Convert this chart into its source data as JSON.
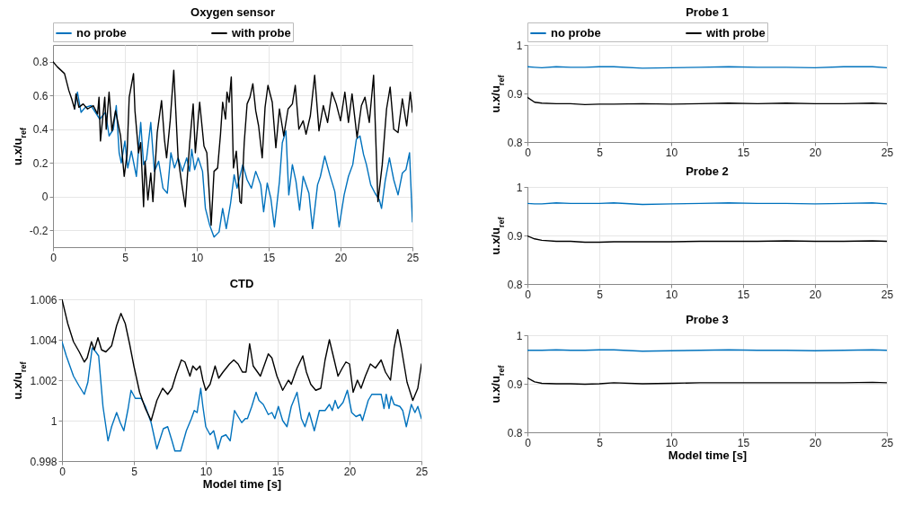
{
  "chart_data": [
    {
      "type": "line",
      "title": "Oxygen sensor",
      "ylabel": "u.x/u$_{ref}$",
      "xlim": [
        0,
        25
      ],
      "xticks": [
        0,
        5,
        10,
        15,
        20,
        25
      ],
      "ylim": [
        -0.3,
        0.9
      ],
      "yticks": [
        -0.2,
        0,
        0.2,
        0.4,
        0.6,
        0.8
      ],
      "grid": true,
      "legend": "top",
      "series": [
        {
          "name": "no probe",
          "color": "#0072bd",
          "x": [
            1.5,
            1.7,
            1.95,
            2.25,
            2.65,
            2.95,
            3.25,
            3.65,
            3.9,
            4.2,
            4.4,
            4.6,
            4.75,
            5,
            5.2,
            5.45,
            5.8,
            6.1,
            6.3,
            6.5,
            6.8,
            7.05,
            7.35,
            7.65,
            7.95,
            8.2,
            8.45,
            8.7,
            9,
            9.3,
            9.5,
            9.65,
            9.85,
            10.1,
            10.4,
            10.6,
            10.9,
            11.2,
            11.55,
            11.8,
            12.05,
            12.35,
            12.6,
            12.8,
            13.2,
            13.5,
            13.8,
            14.1,
            14.45,
            14.65,
            14.9,
            15.15,
            15.4,
            15.75,
            15.95,
            16.2,
            16.4,
            16.65,
            16.9,
            17.15,
            17.4,
            17.8,
            18.05,
            18.4,
            18.6,
            18.9,
            19.25,
            19.6,
            19.9,
            20.25,
            20.55,
            20.85,
            21.1,
            21.35,
            21.6,
            21.8,
            22.1,
            22.4,
            22.7,
            22.85,
            23.1,
            23.4,
            23.7,
            24,
            24.3,
            24.55,
            24.8,
            25
          ],
          "values": [
            0.52,
            0.62,
            0.5,
            0.53,
            0.54,
            0.5,
            0.46,
            0.5,
            0.36,
            0.4,
            0.54,
            0.26,
            0.2,
            0.33,
            0.17,
            0.27,
            0.12,
            0.44,
            0.19,
            0.22,
            0.44,
            0.15,
            0.21,
            0.05,
            0.02,
            0.26,
            0.17,
            0.23,
            0.15,
            0.23,
            0.15,
            0.28,
            0.16,
            0.23,
            0.15,
            -0.07,
            -0.17,
            -0.24,
            -0.21,
            -0.07,
            -0.19,
            -0.04,
            0.13,
            0.05,
            0.19,
            0.1,
            0.05,
            0.15,
            0.07,
            -0.09,
            0.08,
            -0.01,
            -0.18,
            0.09,
            0.32,
            0.39,
            0.01,
            0.19,
            0.09,
            -0.08,
            0.12,
            0.02,
            -0.19,
            0.07,
            0.12,
            0.24,
            0.13,
            0.03,
            -0.18,
            0.01,
            0.12,
            0.19,
            0.34,
            0.36,
            0.25,
            0.19,
            0.07,
            0.02,
            -0.02,
            -0.07,
            0.09,
            0.23,
            0.1,
            0.01,
            0.14,
            0.16,
            0.26,
            -0.15
          ]
        },
        {
          "name": "with probe",
          "color": "#000000",
          "x": [
            0,
            0.3,
            0.8,
            1.1,
            1.3,
            1.5,
            1.6,
            1.8,
            2.1,
            2.4,
            2.8,
            3.1,
            3.2,
            3.3,
            3.6,
            3.7,
            3.9,
            4.1,
            4.35,
            4.7,
            4.95,
            5.15,
            5.3,
            5.6,
            5.7,
            5.95,
            6.1,
            6.3,
            6.4,
            6.6,
            6.8,
            6.95,
            7.25,
            7.55,
            7.75,
            7.9,
            8.15,
            8.4,
            8.7,
            9,
            9.2,
            9.5,
            9.75,
            9.9,
            10.2,
            10.5,
            10.7,
            11,
            11.2,
            11.45,
            11.65,
            11.8,
            12,
            12.1,
            12.25,
            12.4,
            12.55,
            12.75,
            13,
            13.1,
            13.3,
            13.5,
            13.7,
            13.9,
            14.1,
            14.3,
            14.55,
            14.75,
            14.95,
            15.25,
            15.5,
            15.75,
            16.05,
            16.35,
            16.65,
            16.85,
            17.1,
            17.4,
            17.6,
            17.9,
            18.2,
            18.5,
            18.8,
            19.1,
            19.4,
            19.7,
            20,
            20.3,
            20.55,
            20.8,
            21.15,
            21.45,
            21.7,
            22,
            22.3,
            22.6,
            22.9,
            23.2,
            23.45,
            23.7,
            24,
            24.3,
            24.6,
            24.85,
            25
          ],
          "values": [
            0.8,
            0.77,
            0.73,
            0.63,
            0.58,
            0.52,
            0.61,
            0.53,
            0.55,
            0.52,
            0.54,
            0.49,
            0.59,
            0.33,
            0.59,
            0.4,
            0.62,
            0.39,
            0.51,
            0.36,
            0.12,
            0.25,
            0.59,
            0.73,
            0.51,
            0.26,
            0.32,
            -0.06,
            0.21,
            -0.02,
            0.14,
            -0.03,
            0.38,
            0.57,
            0.34,
            0.23,
            0.45,
            0.75,
            0.23,
            0.05,
            -0.06,
            0.31,
            0.55,
            0.26,
            0.56,
            0.3,
            0.26,
            -0.17,
            0.15,
            0.17,
            0.37,
            0.56,
            0.46,
            0.62,
            0.56,
            0.71,
            0.17,
            0.27,
            -0.03,
            -0.04,
            0.32,
            0.55,
            0.59,
            0.67,
            0.51,
            0.42,
            0.23,
            0.53,
            0.66,
            0.56,
            0.29,
            0.52,
            0.36,
            0.52,
            0.55,
            0.66,
            0.4,
            0.45,
            0.37,
            0.48,
            0.72,
            0.39,
            0.54,
            0.44,
            0.62,
            0.55,
            0.45,
            0.62,
            0.44,
            0.61,
            0.35,
            0.54,
            0.59,
            0.44,
            0.72,
            -0.03,
            0.19,
            0.52,
            0.65,
            0.4,
            0.38,
            0.58,
            0.42,
            0.62,
            0.5
          ]
        }
      ]
    },
    {
      "type": "line",
      "title": "CTD",
      "xlabel": "Model time [s]",
      "ylabel": "u.x/u$_{ref}$",
      "xlim": [
        0,
        25
      ],
      "xticks": [
        0,
        5,
        10,
        15,
        20,
        25
      ],
      "ylim": [
        0.998,
        1.006
      ],
      "yticks": [
        0.998,
        1,
        1.002,
        1.004,
        1.006
      ],
      "grid": true,
      "series": [
        {
          "color": "#0072bd",
          "x": [
            0,
            0.3,
            0.8,
            1.2,
            1.55,
            1.8,
            2.1,
            2.35,
            2.55,
            2.85,
            3.2,
            3.45,
            3.8,
            4.05,
            4.3,
            4.6,
            4.8,
            5.1,
            5.5,
            5.8,
            6.2,
            6.6,
            7.05,
            7.35,
            7.65,
            7.85,
            8.25,
            8.65,
            9,
            9.2,
            9.4,
            9.65,
            9.8,
            10,
            10.3,
            10.55,
            10.85,
            11.1,
            11.4,
            11.7,
            12,
            12.25,
            12.5,
            12.75,
            12.9,
            13.2,
            13.5,
            13.7,
            14,
            14.35,
            14.6,
            14.8,
            15.05,
            15.35,
            15.65,
            15.95,
            16.35,
            16.65,
            16.9,
            17.2,
            17.55,
            17.9,
            18.3,
            18.6,
            18.8,
            19,
            19.2,
            19.55,
            19.85,
            20.15,
            20.45,
            20.75,
            20.9,
            21.3,
            21.55,
            21.9,
            22.2,
            22.4,
            22.55,
            22.75,
            22.9,
            23.1,
            23.5,
            23.7,
            23.95,
            24.3,
            24.55,
            24.75,
            25
          ],
          "values": [
            1.0039,
            1.0032,
            1.0022,
            1.0017,
            1.0013,
            1.0019,
            1.0036,
            1.0034,
            1.0032,
            1.0007,
            0.999,
            0.9997,
            1.0004,
            0.9999,
            0.9995,
            1.0006,
            1.0015,
            1.0011,
            1.0011,
            1.0007,
            0.9999,
            0.9986,
            0.9996,
            0.9997,
            0.999,
            0.9985,
            0.9985,
            0.9995,
            1.0001,
            1.0005,
            1.0004,
            1.0016,
            1.0007,
            0.9997,
            0.9993,
            0.9995,
            0.9986,
            0.9992,
            0.9993,
            0.999,
            1.0005,
            1.0002,
            0.9999,
            1.0001,
            1.0001,
            1.0007,
            1.0014,
            1.001,
            1.0008,
            1.0003,
            1.0004,
            1.0001,
            1.0007,
            1,
            0.9997,
            1.0007,
            1.0014,
            1.0001,
            0.9997,
            1.0004,
            0.9995,
            1.0005,
            1.0005,
            1.0008,
            1.0005,
            1.001,
            1.0006,
            1.0009,
            1.0015,
            1.0004,
            1.0002,
            1.0003,
            1,
            1.001,
            1.0013,
            1.0013,
            1.0013,
            1.0006,
            1.0013,
            1.0006,
            1.0012,
            1.0008,
            1.0007,
            1.0005,
            0.9997,
            1.0008,
            1.0004,
            1.0007,
            1.0001
          ]
        },
        {
          "color": "#000000",
          "x": [
            0,
            0.4,
            0.8,
            1.2,
            1.55,
            1.75,
            2.05,
            2.25,
            2.5,
            2.75,
            3.05,
            3.45,
            3.8,
            4.1,
            4.4,
            4.7,
            5,
            5.4,
            5.8,
            6.2,
            6.6,
            7,
            7.35,
            7.65,
            7.95,
            8.3,
            8.55,
            8.9,
            9.1,
            9.35,
            9.6,
            9.8,
            10,
            10.3,
            10.65,
            10.9,
            11.2,
            11.65,
            11.95,
            12.25,
            12.55,
            12.8,
            13.05,
            13.3,
            13.8,
            14.1,
            14.35,
            14.6,
            14.95,
            15.35,
            15.75,
            15.95,
            16.35,
            16.75,
            17,
            17.3,
            17.65,
            18,
            18.3,
            18.6,
            18.9,
            19.2,
            19.5,
            19.75,
            20,
            20.25,
            20.55,
            20.8,
            21.1,
            21.45,
            21.8,
            22.2,
            22.5,
            22.85,
            23.1,
            23.35,
            23.6,
            24,
            24.4,
            24.75,
            25
          ],
          "values": [
            1.006,
            1.0048,
            1.0039,
            1.0034,
            1.0029,
            1.0031,
            1.0039,
            1.0035,
            1.0041,
            1.0035,
            1.0034,
            1.0037,
            1.0047,
            1.0053,
            1.0048,
            1.0038,
            1.0027,
            1.0014,
            1.0006,
            1,
            1.001,
            1.0016,
            1.0013,
            1.0016,
            1.0023,
            1.003,
            1.0029,
            1.0022,
            1.0027,
            1.0025,
            1.0027,
            1.002,
            1.0015,
            1.0018,
            1.0027,
            1.0021,
            1.0024,
            1.0028,
            1.003,
            1.0028,
            1.0024,
            1.0024,
            1.0038,
            1.0027,
            1.0022,
            1.0028,
            1.0033,
            1.0031,
            1.0022,
            1.0015,
            1.002,
            1.0018,
            1.0026,
            1.0032,
            1.0024,
            1.0018,
            1.0015,
            1.0016,
            1.003,
            1.004,
            1.0031,
            1.0022,
            1.0026,
            1.0029,
            1.0028,
            1.0014,
            1.002,
            1.0016,
            1.0022,
            1.0028,
            1.0026,
            1.003,
            1.0024,
            1.002,
            1.0036,
            1.0045,
            1.0036,
            1.0019,
            1.001,
            1.0016,
            1.0028
          ]
        }
      ]
    },
    {
      "type": "line",
      "title": "Probe 1",
      "ylabel": "u.x/u$_{ref}$",
      "x": [
        0,
        0.5,
        1,
        2,
        3,
        4,
        5,
        6,
        8,
        10,
        12,
        14,
        16,
        18,
        20,
        22,
        24,
        25
      ],
      "xlim": [
        0,
        25
      ],
      "xticks": [
        0,
        5,
        10,
        15,
        20,
        25
      ],
      "ylim": [
        0.8,
        1
      ],
      "yticks": [
        0.8,
        0.9,
        1
      ],
      "grid": true,
      "legend": "top",
      "series": [
        {
          "name": "no probe",
          "color": "#0072bd",
          "values": [
            0.955,
            0.954,
            0.953,
            0.955,
            0.954,
            0.954,
            0.955,
            0.955,
            0.952,
            0.953,
            0.954,
            0.955,
            0.954,
            0.954,
            0.953,
            0.955,
            0.955,
            0.953
          ]
        },
        {
          "name": "with probe",
          "color": "#000000",
          "values": [
            0.892,
            0.882,
            0.88,
            0.879,
            0.879,
            0.877,
            0.878,
            0.878,
            0.879,
            0.878,
            0.879,
            0.88,
            0.879,
            0.88,
            0.879,
            0.879,
            0.88,
            0.879
          ]
        }
      ]
    },
    {
      "type": "line",
      "title": "Probe 2",
      "ylabel": "u.x/u$_{ref}$",
      "x": [
        0,
        0.5,
        1,
        2,
        3,
        4,
        5,
        6,
        8,
        10,
        12,
        14,
        16,
        18,
        20,
        22,
        24,
        25
      ],
      "xlim": [
        0,
        25
      ],
      "xticks": [
        0,
        5,
        10,
        15,
        20,
        25
      ],
      "ylim": [
        0.8,
        1
      ],
      "yticks": [
        0.8,
        0.9,
        1
      ],
      "grid": true,
      "series": [
        {
          "color": "#0072bd",
          "values": [
            0.966,
            0.965,
            0.965,
            0.967,
            0.966,
            0.966,
            0.966,
            0.967,
            0.964,
            0.965,
            0.966,
            0.967,
            0.966,
            0.966,
            0.965,
            0.966,
            0.967,
            0.965
          ]
        },
        {
          "color": "#000000",
          "values": [
            0.899,
            0.893,
            0.89,
            0.888,
            0.888,
            0.886,
            0.886,
            0.887,
            0.887,
            0.887,
            0.888,
            0.888,
            0.888,
            0.889,
            0.888,
            0.888,
            0.889,
            0.888
          ]
        }
      ]
    },
    {
      "type": "line",
      "title": "Probe 3",
      "xlabel": "Model time [s]",
      "ylabel": "u.x/u$_{ref}$",
      "x": [
        0,
        0.5,
        1,
        2,
        3,
        4,
        5,
        6,
        8,
        10,
        12,
        14,
        16,
        18,
        20,
        22,
        24,
        25
      ],
      "xlim": [
        0,
        25
      ],
      "xticks": [
        0,
        5,
        10,
        15,
        20,
        25
      ],
      "ylim": [
        0.8,
        1
      ],
      "yticks": [
        0.8,
        0.9,
        1
      ],
      "grid": true,
      "series": [
        {
          "color": "#0072bd",
          "values": [
            0.969,
            0.969,
            0.969,
            0.97,
            0.969,
            0.969,
            0.97,
            0.97,
            0.967,
            0.968,
            0.969,
            0.97,
            0.969,
            0.969,
            0.968,
            0.969,
            0.97,
            0.969
          ]
        },
        {
          "color": "#000000",
          "values": [
            0.912,
            0.904,
            0.901,
            0.9,
            0.9,
            0.899,
            0.9,
            0.902,
            0.9,
            0.901,
            0.902,
            0.902,
            0.902,
            0.902,
            0.902,
            0.902,
            0.903,
            0.902
          ]
        }
      ]
    }
  ]
}
